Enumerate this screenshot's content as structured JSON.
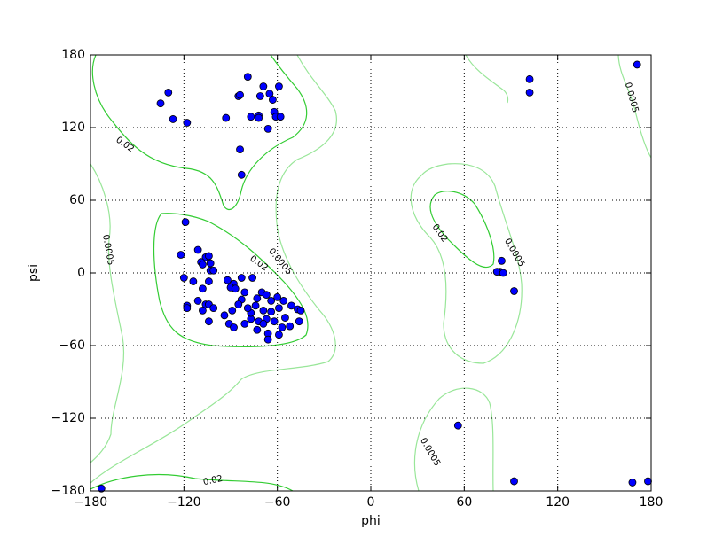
{
  "chart_data": {
    "type": "scatter",
    "xlabel": "phi",
    "ylabel": "psi",
    "xlim": [
      -180,
      180
    ],
    "ylim": [
      -180,
      180
    ],
    "xticks": [
      {
        "value": -180,
        "label": "−180"
      },
      {
        "value": -120,
        "label": "−120"
      },
      {
        "value": -60,
        "label": "−60"
      },
      0,
      60,
      120,
      180
    ],
    "yticks": [
      {
        "value": -180,
        "label": "−180"
      },
      {
        "value": -120,
        "label": "−120"
      },
      {
        "value": -60,
        "label": "−60"
      },
      0,
      60,
      120,
      180
    ],
    "grid": true,
    "color": "#0000ff",
    "contours": [
      {
        "level": 0.02,
        "color": "#33cc33"
      },
      {
        "level": 0.0005,
        "color": "#99e699"
      }
    ],
    "x": [
      -130,
      -135,
      -127,
      -118,
      -93,
      -85,
      -84,
      -79,
      -69,
      -59,
      -65,
      -71,
      -63,
      -77,
      -72,
      -72,
      -62,
      -61,
      -58,
      -66,
      -84,
      -83,
      102,
      102,
      171,
      84,
      83,
      81,
      85,
      92,
      56,
      92,
      168,
      178,
      -173,
      -119,
      -122,
      -111,
      -106,
      -104,
      -109,
      -103,
      -108,
      -103,
      -101,
      -120,
      -114,
      -104,
      -108,
      -118,
      -118,
      -111,
      -106,
      -104,
      -101,
      -108,
      -104,
      -92,
      -88,
      -83,
      -76,
      -90,
      -87,
      -81,
      -83,
      -85,
      -89,
      -94,
      -91,
      -88,
      -81,
      -77,
      -70,
      -73,
      -74,
      -67,
      -64,
      -60,
      -56,
      -69,
      -64,
      -59,
      -67,
      -62,
      -55,
      -73,
      -66,
      -59,
      -66,
      -77,
      -52,
      -47,
      -45,
      -46,
      -51,
      -72,
      -57,
      -79,
      -69
    ],
    "values": [
      149,
      140,
      127,
      124,
      128,
      146,
      147,
      162,
      154,
      154,
      148,
      146,
      143,
      129,
      130,
      128,
      133,
      129,
      129,
      119,
      102,
      81,
      160,
      149,
      172,
      10,
      1,
      1,
      0,
      -15,
      -126,
      -172,
      -173,
      -172,
      -178,
      42,
      15,
      19,
      13,
      14,
      9,
      8,
      7,
      2,
      2,
      -4,
      -7,
      -7,
      -13,
      -27,
      -29,
      -23,
      -26,
      -26,
      -29,
      -31,
      -40,
      -6,
      -9,
      -4,
      -4,
      -12,
      -13,
      -16,
      -22,
      -26,
      -31,
      -35,
      -42,
      -45,
      -42,
      -38,
      -16,
      -21,
      -27,
      -18,
      -23,
      -20,
      -23,
      -31,
      -32,
      -29,
      -38,
      -40,
      -37,
      -47,
      -50,
      -51,
      -55,
      -33,
      -44,
      -30,
      -31,
      -40,
      -27,
      -40,
      -45,
      -29,
      -42
    ]
  }
}
